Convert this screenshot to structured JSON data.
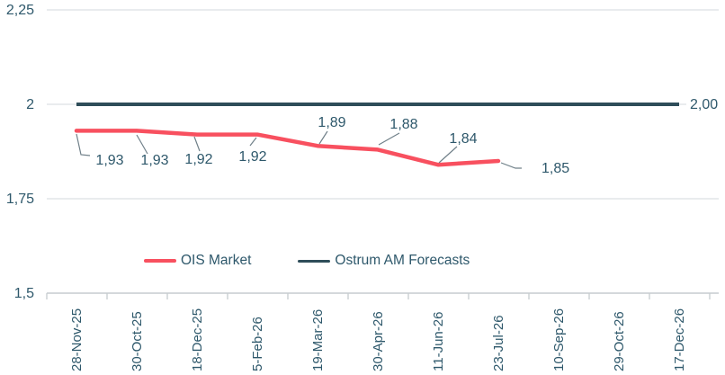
{
  "chart_data": {
    "type": "line",
    "title": "",
    "xlabel": "",
    "ylabel": "",
    "categories": [
      "28-Nov-25",
      "30-Oct-25",
      "18-Dec-25",
      "5-Feb-26",
      "19-Mar-26",
      "30-Apr-26",
      "11-Jun-26",
      "23-Jul-26",
      "10-Sep-26",
      "29-Oct-26",
      "17-Dec-26"
    ],
    "series": [
      {
        "name": "OIS Market",
        "color": "#f8505f",
        "values": [
          1.93,
          1.93,
          1.92,
          1.92,
          1.89,
          1.88,
          1.84,
          1.85
        ],
        "point_labels": [
          "1,93",
          "1,93",
          "1,92",
          "1,92",
          "1,89",
          "1,88",
          "1,84",
          "1,85"
        ]
      },
      {
        "name": "Ostrum AM Forecasts",
        "color": "#2e4d59",
        "values": [
          2.0,
          2.0,
          2.0,
          2.0,
          2.0,
          2.0,
          2.0,
          2.0,
          2.0,
          2.0,
          2.0
        ],
        "end_label": "2,00"
      }
    ],
    "y_axis": {
      "min": 1.5,
      "max": 2.25,
      "tick_values": [
        1.5,
        1.75,
        2,
        2.25
      ],
      "tick_labels": [
        "1,5",
        "1,75",
        "2",
        "2,25"
      ]
    },
    "grid": true,
    "legend_position": "bottom"
  },
  "colors": {
    "text": "#2e586b",
    "gridline": "#dce1e4",
    "axis": "#c6cbcf",
    "leader": "#708089"
  }
}
